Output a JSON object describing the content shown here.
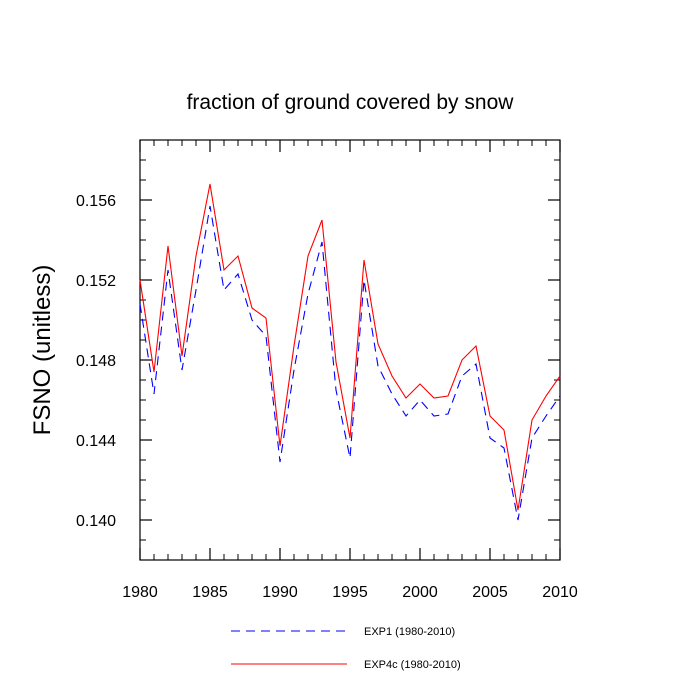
{
  "chart_data": {
    "type": "line",
    "title": "fraction of ground covered by snow",
    "xlabel": "",
    "ylabel": "FSNO  (unitless)",
    "xlim": [
      1980,
      2010
    ],
    "ylim": [
      0.138,
      0.159
    ],
    "x_ticks": [
      1980,
      1985,
      1990,
      1995,
      2000,
      2005,
      2010
    ],
    "x_tick_labels": [
      "1980",
      "1985",
      "1990",
      "1995",
      "2000",
      "2005",
      "2010"
    ],
    "y_ticks": [
      0.14,
      0.144,
      0.148,
      0.152,
      0.156
    ],
    "y_tick_labels": [
      "0.140",
      "0.144",
      "0.148",
      "0.152",
      "0.156"
    ],
    "grid": false,
    "legend_position": "bottom",
    "x": [
      1980,
      1981,
      1982,
      1983,
      1984,
      1985,
      1986,
      1987,
      1988,
      1989,
      1990,
      1991,
      1992,
      1993,
      1994,
      1995,
      1996,
      1997,
      1998,
      1999,
      2000,
      2001,
      2002,
      2003,
      2004,
      2005,
      2006,
      2007,
      2008,
      2009,
      2010
    ],
    "series": [
      {
        "name": "EXP1 (1980-2010)",
        "color": "#0000ff",
        "style": "dashed",
        "values": [
          0.1508,
          0.1463,
          0.1525,
          0.1475,
          0.1515,
          0.1557,
          0.1515,
          0.1523,
          0.15,
          0.1492,
          0.1429,
          0.1475,
          0.1513,
          0.1539,
          0.1465,
          0.1431,
          0.152,
          0.1477,
          0.1463,
          0.1452,
          0.146,
          0.1452,
          0.1453,
          0.1472,
          0.1478,
          0.1441,
          0.1436,
          0.14,
          0.1441,
          0.1452,
          0.1462
        ]
      },
      {
        "name": "EXP4c (1980-2010)",
        "color": "#ff0000",
        "style": "solid",
        "values": [
          0.152,
          0.1474,
          0.1537,
          0.1482,
          0.1532,
          0.1568,
          0.1525,
          0.1532,
          0.1506,
          0.1501,
          0.1437,
          0.1487,
          0.1532,
          0.155,
          0.1479,
          0.1441,
          0.153,
          0.1488,
          0.1472,
          0.1461,
          0.1468,
          0.1461,
          0.1462,
          0.148,
          0.1487,
          0.1452,
          0.1445,
          0.1405,
          0.145,
          0.1462,
          0.1472
        ]
      }
    ]
  }
}
